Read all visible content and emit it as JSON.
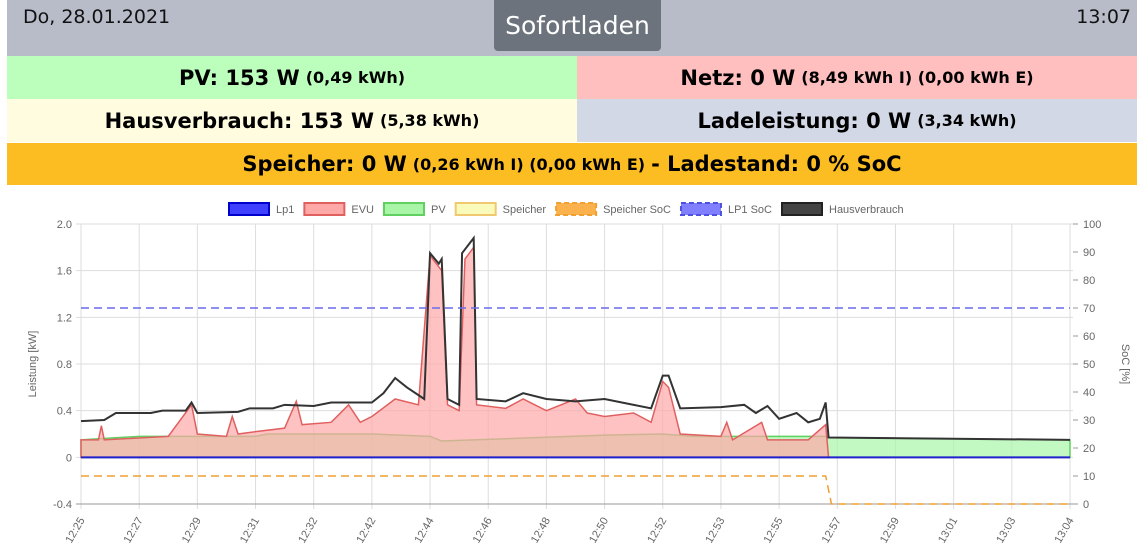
{
  "header": {
    "date": "Do, 28.01.2021",
    "mode": "Sofortladen",
    "time": "13:07"
  },
  "tiles": {
    "pv": {
      "main": "PV: 153 W",
      "sub": "(0,49 kWh)",
      "color": "#bcffbc"
    },
    "netz": {
      "main": "Netz: 0 W",
      "sub": "(8,49 kWh I) (0,00 kWh E)",
      "color": "#ffbfbf"
    },
    "haus": {
      "main": "Hausverbrauch: 153 W",
      "sub": "(5,38 kWh)",
      "color": "#fffcdf"
    },
    "lade": {
      "main": "Ladeleistung: 0 W",
      "sub": "(3,34 kWh)",
      "color": "#d3d8e6"
    },
    "speicher": {
      "main": "Speicher: 0 W",
      "sub": "(0,26 kWh I) (0,00 kWh E)",
      "main2": "- Ladestand: 0 % SoC",
      "color": "#fbbd22"
    }
  },
  "chart_data": {
    "type": "line",
    "xlabels": [
      "12:25",
      "12:27",
      "12:29",
      "12:31",
      "12:32",
      "12:42",
      "12:44",
      "12:46",
      "12:48",
      "12:50",
      "12:52",
      "12:53",
      "12:55",
      "12:57",
      "12:59",
      "13:01",
      "13:03",
      "13:04"
    ],
    "ylabel": "Leistung [kW]",
    "y2label": "SoC [%]",
    "ylim": [
      -0.4,
      2.0
    ],
    "yticks": [
      "-0.4",
      "0",
      "0.4",
      "0.8",
      "1.2",
      "1.6",
      "2.0"
    ],
    "y2lim": [
      0,
      100
    ],
    "y2ticks": [
      "0",
      "10",
      "20",
      "30",
      "40",
      "50",
      "60",
      "70",
      "80",
      "90",
      "100"
    ],
    "legend": [
      {
        "name": "Lp1",
        "fill": "#4040ff",
        "stroke": "#0000cc",
        "dash": false
      },
      {
        "name": "EVU",
        "fill": "#ffa8a8",
        "stroke": "#e06060",
        "dash": false
      },
      {
        "name": "PV",
        "fill": "#a8f5a8",
        "stroke": "#60d060",
        "dash": false
      },
      {
        "name": "Speicher",
        "fill": "#fafabb",
        "stroke": "#f0c870",
        "dash": false
      },
      {
        "name": "Speicher SoC",
        "fill": "#fcb24c",
        "stroke": "#f0a030",
        "dash": true
      },
      {
        "name": "LP1 SoC",
        "fill": "#7f7fff",
        "stroke": "#5050e0",
        "dash": true
      },
      {
        "name": "Hausverbrauch",
        "fill": "#444",
        "stroke": "#222",
        "dash": false
      }
    ],
    "series": {
      "Hausverbrauch": [
        [
          0,
          0.31
        ],
        [
          0.4,
          0.32
        ],
        [
          0.6,
          0.38
        ],
        [
          1.2,
          0.38
        ],
        [
          1.4,
          0.4
        ],
        [
          1.8,
          0.4
        ],
        [
          1.9,
          0.47
        ],
        [
          2,
          0.38
        ],
        [
          2.7,
          0.39
        ],
        [
          2.9,
          0.42
        ],
        [
          3.3,
          0.42
        ],
        [
          3.5,
          0.45
        ],
        [
          4,
          0.44
        ],
        [
          4.3,
          0.47
        ],
        [
          5,
          0.47
        ],
        [
          5.2,
          0.55
        ],
        [
          5.4,
          0.68
        ],
        [
          5.6,
          0.6
        ],
        [
          5.9,
          0.5
        ],
        [
          6,
          1.75
        ],
        [
          6.15,
          1.66
        ],
        [
          6.2,
          1.7
        ],
        [
          6.3,
          0.5
        ],
        [
          6.5,
          0.45
        ],
        [
          6.55,
          1.75
        ],
        [
          6.75,
          1.88
        ],
        [
          6.8,
          0.5
        ],
        [
          7.3,
          0.48
        ],
        [
          7.6,
          0.55
        ],
        [
          8,
          0.5
        ],
        [
          8.5,
          0.48
        ],
        [
          9,
          0.5
        ],
        [
          9.5,
          0.45
        ],
        [
          9.8,
          0.42
        ],
        [
          10,
          0.7
        ],
        [
          10.1,
          0.7
        ],
        [
          10.3,
          0.42
        ],
        [
          11,
          0.43
        ],
        [
          11.4,
          0.45
        ],
        [
          11.6,
          0.38
        ],
        [
          11.8,
          0.44
        ],
        [
          12,
          0.33
        ],
        [
          12.3,
          0.38
        ],
        [
          12.5,
          0.3
        ],
        [
          12.7,
          0.33
        ],
        [
          12.8,
          0.47
        ],
        [
          12.85,
          0.17
        ],
        [
          17,
          0.15
        ]
      ],
      "EVU": [
        [
          0,
          0.15
        ],
        [
          0.3,
          0.15
        ],
        [
          0.35,
          0.27
        ],
        [
          0.4,
          0.15
        ],
        [
          1.5,
          0.18
        ],
        [
          1.9,
          0.45
        ],
        [
          2,
          0.2
        ],
        [
          2.5,
          0.18
        ],
        [
          2.6,
          0.35
        ],
        [
          2.7,
          0.2
        ],
        [
          3,
          0.22
        ],
        [
          3.5,
          0.25
        ],
        [
          3.7,
          0.48
        ],
        [
          3.8,
          0.28
        ],
        [
          4.3,
          0.3
        ],
        [
          4.6,
          0.45
        ],
        [
          4.8,
          0.3
        ],
        [
          5,
          0.35
        ],
        [
          5.4,
          0.5
        ],
        [
          5.8,
          0.45
        ],
        [
          6,
          1.73
        ],
        [
          6.2,
          1.6
        ],
        [
          6.3,
          0.45
        ],
        [
          6.5,
          0.4
        ],
        [
          6.6,
          1.7
        ],
        [
          6.75,
          1.8
        ],
        [
          6.8,
          0.45
        ],
        [
          7.3,
          0.42
        ],
        [
          7.6,
          0.5
        ],
        [
          8,
          0.4
        ],
        [
          8.5,
          0.5
        ],
        [
          8.7,
          0.38
        ],
        [
          9,
          0.35
        ],
        [
          9.5,
          0.38
        ],
        [
          9.8,
          0.3
        ],
        [
          10,
          0.65
        ],
        [
          10.1,
          0.6
        ],
        [
          10.3,
          0.2
        ],
        [
          11,
          0.18
        ],
        [
          11.1,
          0.3
        ],
        [
          11.2,
          0.15
        ],
        [
          11.7,
          0.3
        ],
        [
          11.8,
          0.15
        ],
        [
          12.5,
          0.15
        ],
        [
          12.8,
          0.28
        ],
        [
          12.85,
          0
        ]
      ],
      "PV": [
        [
          0,
          0.15
        ],
        [
          1,
          0.18
        ],
        [
          3,
          0.18
        ],
        [
          3.2,
          0.2
        ],
        [
          5,
          0.2
        ],
        [
          6,
          0.18
        ],
        [
          6.2,
          0.14
        ],
        [
          9,
          0.19
        ],
        [
          10,
          0.2
        ],
        [
          10.5,
          0.18
        ],
        [
          12.8,
          0.18
        ],
        [
          12.85,
          0.17
        ],
        [
          17,
          0.15
        ]
      ],
      "Lp1": [
        [
          0,
          0
        ],
        [
          17,
          0
        ]
      ],
      "Speicher SoC": [
        [
          0,
          10
        ],
        [
          12.8,
          10
        ],
        [
          12.9,
          0
        ],
        [
          17,
          0
        ]
      ],
      "LP1 SoC": [
        [
          0,
          70
        ],
        [
          17,
          70
        ]
      ]
    }
  }
}
